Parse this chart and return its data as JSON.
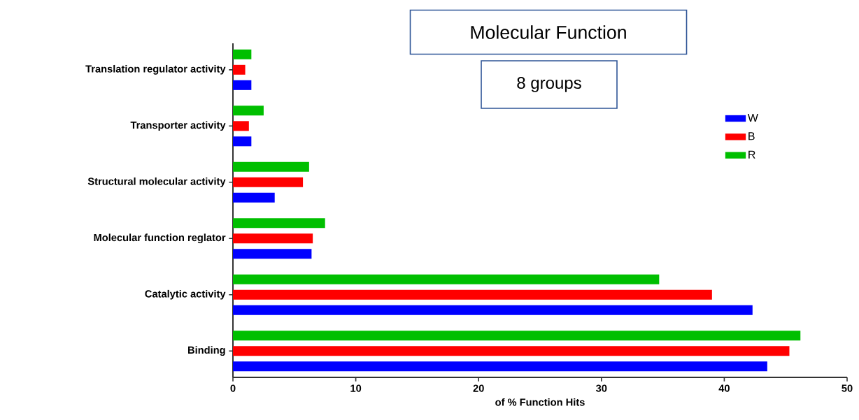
{
  "chart_data": {
    "type": "bar",
    "orientation": "horizontal",
    "title": "Molecular Function",
    "subtitle": "8 groups",
    "categories": [
      "Translation regulator activity",
      "Transporter activity",
      "Structural molecular activity",
      "Molecular function reglator",
      "Catalytic activity",
      "Binding"
    ],
    "series": [
      {
        "name": "W",
        "color": "#0000ff",
        "values": [
          1.5,
          1.5,
          3.4,
          6.4,
          42.3,
          43.5
        ]
      },
      {
        "name": "B",
        "color": "#ff0000",
        "values": [
          1.0,
          1.3,
          5.7,
          6.5,
          39.0,
          45.3
        ]
      },
      {
        "name": "R",
        "color": "#00bf00",
        "values": [
          1.5,
          2.5,
          6.2,
          7.5,
          34.7,
          46.2
        ]
      }
    ],
    "xlim": [
      0,
      50
    ],
    "xticks": [
      0,
      10,
      20,
      30,
      40,
      50
    ],
    "xlabel": "of % Function Hits",
    "legend": "right"
  }
}
